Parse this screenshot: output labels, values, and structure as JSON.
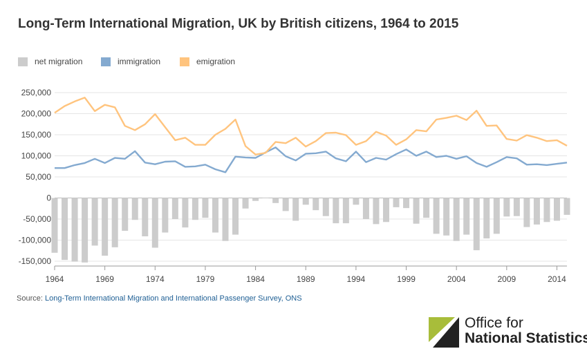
{
  "header": {
    "title": "Long-Term International Migration, UK by British citizens, 1964 to 2015"
  },
  "source": {
    "prefix": "Source:",
    "link_text": "Long-Term International Migration and International Passenger Survey, ONS"
  },
  "logo": {
    "line1": "Office for",
    "line2": "National Statistics",
    "colors": {
      "lime": "#a8bd3a",
      "dark": "#222222"
    }
  },
  "chart_data": {
    "type": "bar",
    "x": [
      1964,
      1965,
      1966,
      1967,
      1968,
      1969,
      1970,
      1971,
      1972,
      1973,
      1974,
      1975,
      1976,
      1977,
      1978,
      1979,
      1980,
      1981,
      1982,
      1983,
      1984,
      1985,
      1986,
      1987,
      1988,
      1989,
      1990,
      1991,
      1992,
      1993,
      1994,
      1995,
      1996,
      1997,
      1998,
      1999,
      2000,
      2001,
      2002,
      2003,
      2004,
      2005,
      2006,
      2007,
      2008,
      2009,
      2010,
      2011,
      2012,
      2013,
      2014,
      2015
    ],
    "series": [
      {
        "name": "net migration",
        "type": "bar",
        "color": "#cccccc",
        "values": [
          -130000,
          -147000,
          -151000,
          -153000,
          -113000,
          -137000,
          -117000,
          -78000,
          -52000,
          -91000,
          -118000,
          -82000,
          -50000,
          -70000,
          -52000,
          -47000,
          -82000,
          -102000,
          -87000,
          -25000,
          -7000,
          1000,
          -12000,
          -31000,
          -54000,
          -16000,
          -29000,
          -43000,
          -60000,
          -60000,
          -16000,
          -50000,
          -62000,
          -57000,
          -22000,
          -24000,
          -61000,
          -47000,
          -85000,
          -89000,
          -102000,
          -87000,
          -124000,
          -96000,
          -85000,
          -44000,
          -43000,
          -69000,
          -63000,
          -57000,
          -54000,
          -40000
        ]
      },
      {
        "name": "immigration",
        "type": "line",
        "color": "#84aad0",
        "values": [
          71000,
          71000,
          78000,
          83000,
          93000,
          83000,
          95000,
          93000,
          111000,
          84000,
          80000,
          86000,
          87000,
          74000,
          75000,
          79000,
          68000,
          61000,
          98000,
          96000,
          95000,
          108000,
          120000,
          99000,
          89000,
          105000,
          106000,
          110000,
          94000,
          87000,
          110000,
          85000,
          95000,
          91000,
          104000,
          115000,
          100000,
          110000,
          97000,
          100000,
          93000,
          99000,
          83000,
          74000,
          85000,
          97000,
          94000,
          79000,
          80000,
          78000,
          81000,
          84000
        ]
      },
      {
        "name": "emigration",
        "type": "line",
        "color": "#ffc47e",
        "values": [
          202000,
          218000,
          229000,
          238000,
          206000,
          221000,
          215000,
          171000,
          161000,
          175000,
          199000,
          168000,
          137000,
          143000,
          126000,
          126000,
          150000,
          164000,
          186000,
          123000,
          103000,
          107000,
          133000,
          130000,
          143000,
          122000,
          135000,
          154000,
          155000,
          149000,
          126000,
          135000,
          157000,
          148000,
          126000,
          139000,
          161000,
          158000,
          186000,
          190000,
          195000,
          185000,
          207000,
          171000,
          172000,
          140000,
          136000,
          149000,
          143000,
          135000,
          137000,
          124000
        ]
      }
    ],
    "title": "Long-Term International Migration, UK by British citizens, 1964 to 2015",
    "xlabel": "",
    "ylabel": "",
    "ylim": [
      -150000,
      250000
    ],
    "xlim": [
      1964,
      2015
    ],
    "yticks": [
      -150000,
      -100000,
      -50000,
      0,
      50000,
      100000,
      150000,
      200000,
      250000
    ],
    "yticklabels": [
      "-150,000",
      "-100,000",
      "-50,000",
      "0",
      "50,000",
      "100,000",
      "150,000",
      "200,000",
      "250,000"
    ],
    "xticks": [
      "1964",
      "1969",
      "1974",
      "1979",
      "1984",
      "1989",
      "1994",
      "1999",
      "2004",
      "2009",
      "2014"
    ],
    "grid": true,
    "legend": "top-left"
  }
}
